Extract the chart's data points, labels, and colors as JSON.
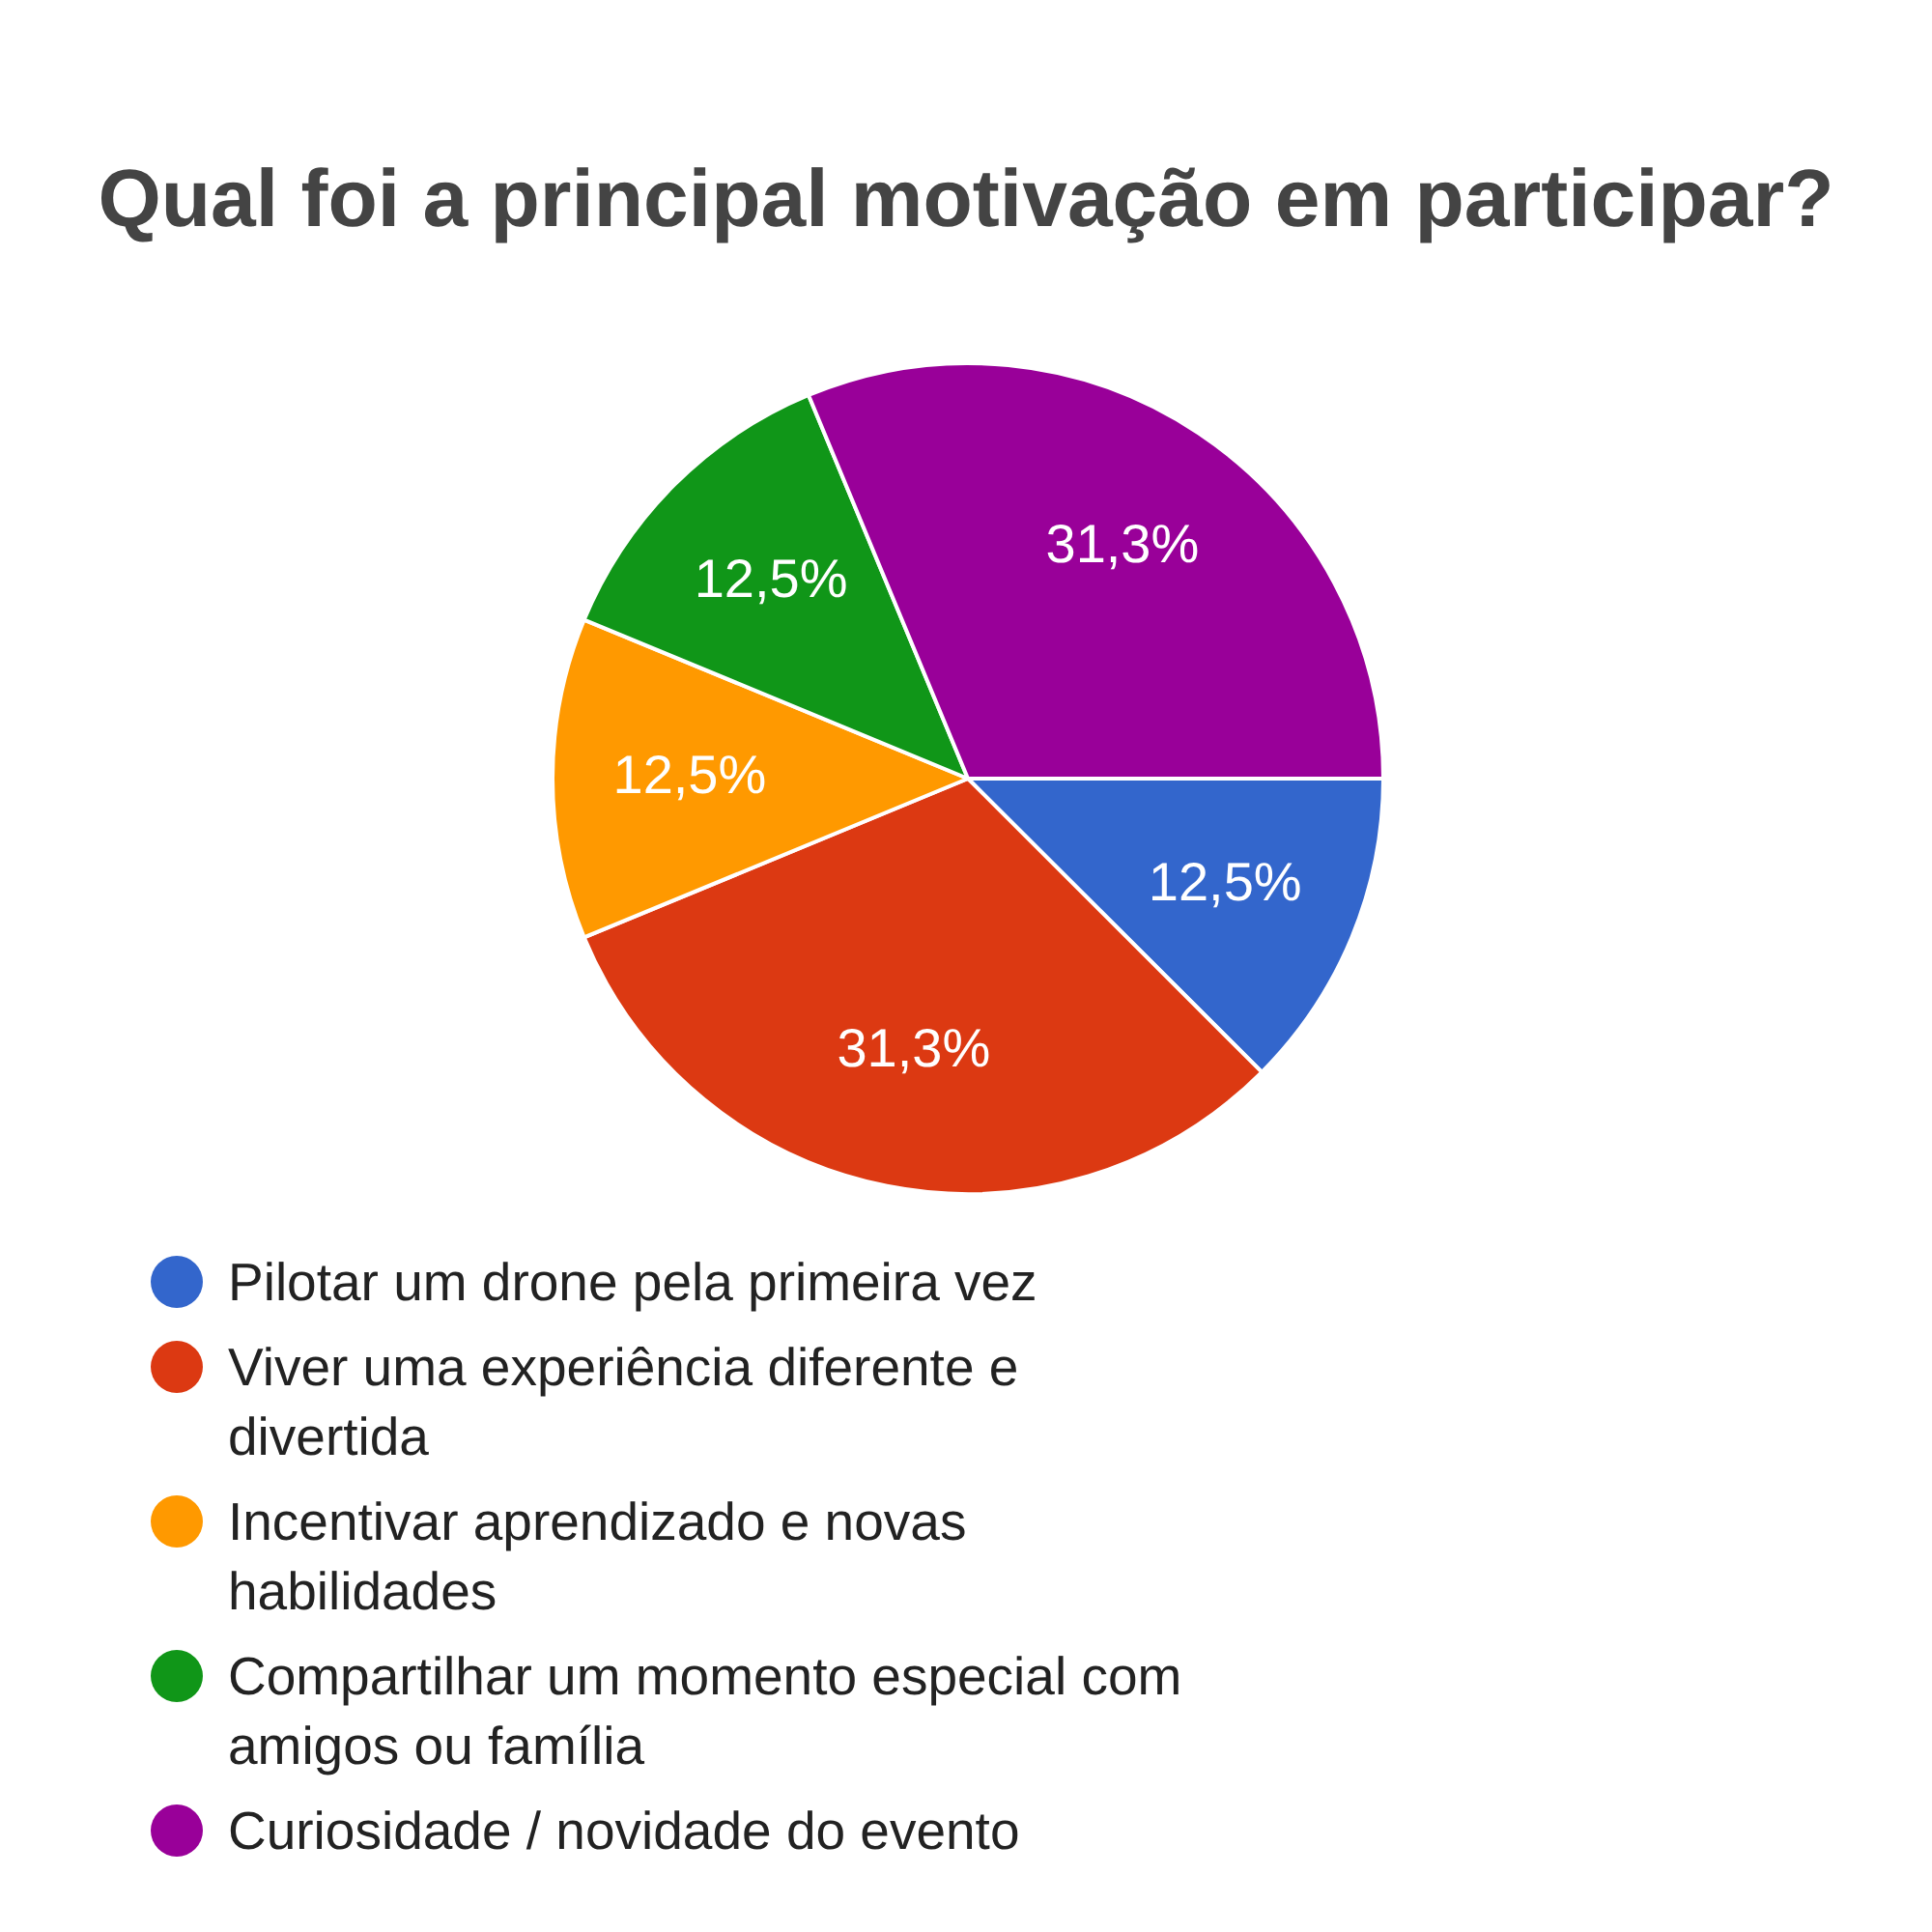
{
  "chart_data": {
    "type": "pie",
    "title": "Qual foi a principal motivação em participar?",
    "categories": [
      "Pilotar um drone pela primeira vez",
      "Viver uma experiência diferente e divertida",
      "Incentivar aprendizado e novas habilidades",
      "Compartilhar um momento especial com amigos ou família",
      "Curiosidade / novidade do evento"
    ],
    "values": [
      12.5,
      31.3,
      12.5,
      12.5,
      31.3
    ],
    "colors": [
      "#3366cc",
      "#dc3912",
      "#ff9900",
      "#109618",
      "#990099"
    ],
    "value_labels": [
      "12,5%",
      "31,3%",
      "12,5%",
      "12,5%",
      "31,3%"
    ],
    "legend": "bottom"
  }
}
